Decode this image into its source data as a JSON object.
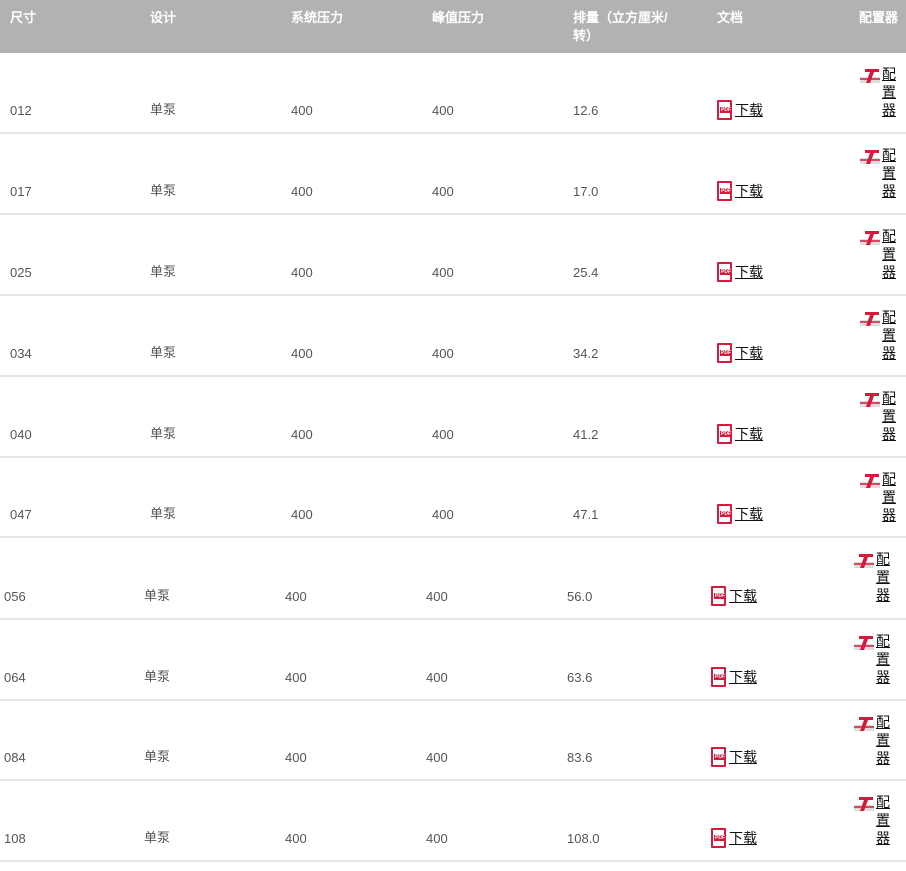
{
  "header": {
    "size": "尺寸",
    "design": "设计",
    "system_pressure": "系统压力",
    "peak_pressure": "峰值压力",
    "displacement": "排量（立方厘米/转）",
    "docs": "文档",
    "configurator": "配置器"
  },
  "download_label": "下载",
  "configurator_label": "配置器",
  "colors": {
    "header_bg": "#b1b2b4",
    "pdf_red": "#d71a3b"
  },
  "rows": [
    {
      "size": "012",
      "design": "单泵",
      "system_pressure": "400",
      "peak_pressure": "400",
      "displacement": "12.6"
    },
    {
      "size": "017",
      "design": "单泵",
      "system_pressure": "400",
      "peak_pressure": "400",
      "displacement": "17.0"
    },
    {
      "size": "025",
      "design": "单泵",
      "system_pressure": "400",
      "peak_pressure": "400",
      "displacement": "25.4"
    },
    {
      "size": "034",
      "design": "单泵",
      "system_pressure": "400",
      "peak_pressure": "400",
      "displacement": "34.2"
    },
    {
      "size": "040",
      "design": "单泵",
      "system_pressure": "400",
      "peak_pressure": "400",
      "displacement": "41.2"
    },
    {
      "size": "047",
      "design": "单泵",
      "system_pressure": "400",
      "peak_pressure": "400",
      "displacement": "47.1"
    },
    {
      "size": "056",
      "design": "单泵",
      "system_pressure": "400",
      "peak_pressure": "400",
      "displacement": "56.0"
    },
    {
      "size": "064",
      "design": "单泵",
      "system_pressure": "400",
      "peak_pressure": "400",
      "displacement": "63.6"
    },
    {
      "size": "084",
      "design": "单泵",
      "system_pressure": "400",
      "peak_pressure": "400",
      "displacement": "83.6"
    },
    {
      "size": "108",
      "design": "单泵",
      "system_pressure": "400",
      "peak_pressure": "400",
      "displacement": "108.0"
    }
  ]
}
